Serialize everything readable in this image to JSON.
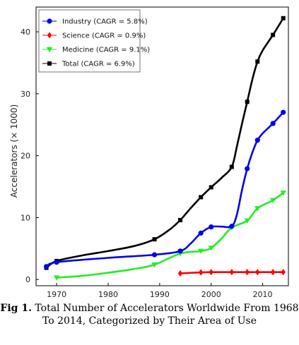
{
  "chart_data": {
    "type": "line",
    "ylabel": "Accelerators (× 1000)",
    "xlabel": "",
    "xlim": [
      1966,
      2015
    ],
    "ylim": [
      -1,
      44
    ],
    "xticks": [
      1970,
      1980,
      1990,
      2000,
      2010
    ],
    "yticks": [
      0,
      10,
      20,
      30,
      40
    ],
    "legend_position": "top-left",
    "series": [
      {
        "name": "Industry (CAGR = 5.8%)",
        "color": "#0000ee",
        "marker": "circle",
        "points": [
          [
            1968,
            2.1
          ],
          [
            1970,
            2.8
          ],
          [
            1989,
            4.0
          ],
          [
            1994,
            4.6
          ],
          [
            1998,
            7.5
          ],
          [
            2000,
            8.5
          ],
          [
            2004,
            8.6
          ],
          [
            2007,
            17.9
          ],
          [
            2009,
            22.5
          ],
          [
            2012,
            25.2
          ],
          [
            2014,
            27.0
          ]
        ],
        "curve": [
          [
            1968,
            2.1
          ],
          [
            1970,
            2.8
          ],
          [
            1980,
            3.5
          ],
          [
            1989,
            4.0
          ],
          [
            1994,
            4.6
          ],
          [
            1996,
            5.8
          ],
          [
            1998,
            7.5
          ],
          [
            2000,
            8.5
          ],
          [
            2002,
            8.55
          ],
          [
            2004,
            8.6
          ],
          [
            2005,
            10.5
          ],
          [
            2006,
            14.5
          ],
          [
            2007,
            17.9
          ],
          [
            2008,
            20.5
          ],
          [
            2009,
            22.5
          ],
          [
            2010,
            23.6
          ],
          [
            2012,
            25.2
          ],
          [
            2014,
            27.0
          ]
        ]
      },
      {
        "name": "Science (CAGR = 0.9%)",
        "color": "#ff0000",
        "marker": "diamond",
        "points": [
          [
            1994,
            1.0
          ],
          [
            1998,
            1.15
          ],
          [
            2000,
            1.2
          ],
          [
            2004,
            1.2
          ],
          [
            2007,
            1.2
          ],
          [
            2009,
            1.2
          ],
          [
            2012,
            1.2
          ],
          [
            2014,
            1.2
          ]
        ],
        "curve": [
          [
            1994,
            1.0
          ],
          [
            1998,
            1.15
          ],
          [
            2000,
            1.2
          ],
          [
            2004,
            1.2
          ],
          [
            2007,
            1.2
          ],
          [
            2009,
            1.2
          ],
          [
            2012,
            1.2
          ],
          [
            2014,
            1.2
          ]
        ]
      },
      {
        "name": "Medicine (CAGR = 9.1%)",
        "color": "#22ee22",
        "marker": "triangle-down",
        "points": [
          [
            1970,
            0.3
          ],
          [
            1989,
            2.4
          ],
          [
            1994,
            4.2
          ],
          [
            1998,
            4.6
          ],
          [
            2000,
            5.1
          ],
          [
            2004,
            8.4
          ],
          [
            2007,
            9.5
          ],
          [
            2009,
            11.5
          ],
          [
            2012,
            12.8
          ],
          [
            2014,
            14.0
          ]
        ],
        "curve": [
          [
            1970,
            0.3
          ],
          [
            1975,
            0.6
          ],
          [
            1980,
            1.1
          ],
          [
            1985,
            1.7
          ],
          [
            1989,
            2.4
          ],
          [
            1994,
            4.2
          ],
          [
            1998,
            4.6
          ],
          [
            2000,
            5.1
          ],
          [
            2002,
            6.6
          ],
          [
            2004,
            8.4
          ],
          [
            2007,
            9.5
          ],
          [
            2009,
            11.5
          ],
          [
            2012,
            12.8
          ],
          [
            2014,
            14.0
          ]
        ]
      },
      {
        "name": "Total (CAGR = 6.9%)",
        "color": "#000000",
        "marker": "square",
        "points": [
          [
            1968,
            1.9
          ],
          [
            1970,
            3.0
          ],
          [
            1989,
            6.5
          ],
          [
            1994,
            9.6
          ],
          [
            1998,
            13.3
          ],
          [
            2000,
            14.9
          ],
          [
            2004,
            18.2
          ],
          [
            2007,
            28.7
          ],
          [
            2009,
            35.2
          ],
          [
            2012,
            39.5
          ],
          [
            2014,
            42.2
          ]
        ],
        "curve": [
          [
            1968,
            1.9
          ],
          [
            1970,
            3.0
          ],
          [
            1975,
            3.9
          ],
          [
            1980,
            4.6
          ],
          [
            1985,
            5.4
          ],
          [
            1989,
            6.5
          ],
          [
            1992,
            8.1
          ],
          [
            1994,
            9.6
          ],
          [
            1996,
            11.5
          ],
          [
            1998,
            13.3
          ],
          [
            2000,
            14.9
          ],
          [
            2002,
            16.4
          ],
          [
            2004,
            18.2
          ],
          [
            2005,
            21.5
          ],
          [
            2006,
            25.2
          ],
          [
            2007,
            28.7
          ],
          [
            2008,
            32.3
          ],
          [
            2009,
            35.2
          ],
          [
            2010,
            37.0
          ],
          [
            2012,
            39.5
          ],
          [
            2014,
            42.2
          ]
        ]
      }
    ]
  },
  "caption": {
    "label": "Fig 1.",
    "text": " Total Number of Accelerators Worldwide From 1968 To 2014, Categorized by Their Area of Use"
  }
}
